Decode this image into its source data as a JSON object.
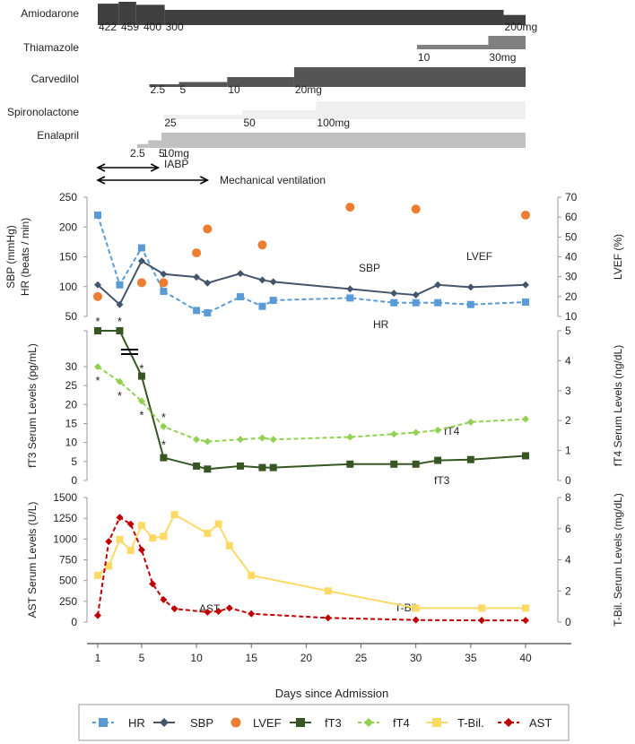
{
  "chart_data": {
    "type": "line",
    "xlabel": "Days since Admission",
    "x_ticks": [
      1,
      5,
      10,
      15,
      20,
      25,
      30,
      35,
      40
    ],
    "medications": [
      {
        "name": "Amiodarone",
        "color": "#404040",
        "doses": [
          {
            "label": "422",
            "dose": 422,
            "start": 1,
            "end": 2.9
          },
          {
            "label": "459",
            "dose": 459,
            "start": 2.9,
            "end": 4.5
          },
          {
            "label": "400",
            "dose": 400,
            "start": 4.5,
            "end": 7.1
          },
          {
            "label": "300",
            "dose": 300,
            "start": 7.1,
            "end": 38
          },
          {
            "label": "200mg",
            "dose": 200,
            "start": 38,
            "end": 40
          }
        ]
      },
      {
        "name": "Thiamazole",
        "color": "#808080",
        "doses": [
          {
            "label": "10",
            "dose": 10,
            "start": 30.1,
            "end": 36.6
          },
          {
            "label": "30mg",
            "dose": 30,
            "start": 36.6,
            "end": 40
          }
        ]
      },
      {
        "name": "Carvedilol",
        "color": "#555555",
        "doses": [
          {
            "label": "2.5",
            "dose": 2.5,
            "start": 5.7,
            "end": 8.4
          },
          {
            "label": "5",
            "dose": 5,
            "start": 8.4,
            "end": 12.8
          },
          {
            "label": "10",
            "dose": 10,
            "start": 12.8,
            "end": 18.9
          },
          {
            "label": "20mg",
            "dose": 20,
            "start": 18.9,
            "end": 40
          }
        ]
      },
      {
        "name": "Spironolactone",
        "color": "#efefef",
        "doses": [
          {
            "label": "25",
            "dose": 25,
            "start": 7,
            "end": 14.2
          },
          {
            "label": "50",
            "dose": 50,
            "start": 14.2,
            "end": 20.9
          },
          {
            "label": "100mg",
            "dose": 100,
            "start": 20.9,
            "end": 40
          }
        ]
      },
      {
        "name": "Enalapril",
        "color": "#c0c0c0",
        "doses": [
          {
            "label": "2.5",
            "dose": 2.5,
            "start": 4.6,
            "end": 5.6
          },
          {
            "label": "5",
            "dose": 5,
            "start": 5.6,
            "end": 6.8
          },
          {
            "label": "10mg",
            "dose": 10,
            "start": 6.8,
            "end": 40
          }
        ]
      }
    ],
    "interventions": [
      {
        "name": "IABP",
        "start": 1,
        "end": 6.5
      },
      {
        "name": "Mechanical  ventilation",
        "start": 1,
        "end": 11
      }
    ],
    "panels": [
      {
        "left_axis": {
          "label_line1": "SBP (mmHg)",
          "label_line2": "HR (beats / min)",
          "ylim": [
            50,
            250
          ],
          "ticks": [
            50,
            100,
            150,
            200,
            250
          ]
        },
        "right_axis": {
          "label": "LVEF (%)",
          "ylim": [
            10,
            70
          ],
          "ticks": [
            10,
            20,
            30,
            40,
            50,
            60,
            70
          ]
        },
        "annotations": [
          "LVEF",
          "SBP",
          "HR"
        ],
        "series": [
          {
            "key": "HR",
            "axis": "left",
            "color": "#5b9bd5",
            "style": "dashed",
            "marker": "square",
            "points": [
              [
                1,
                220
              ],
              [
                3,
                103
              ],
              [
                5,
                165
              ],
              [
                7,
                92
              ],
              [
                10,
                60
              ],
              [
                11,
                56
              ],
              [
                14,
                83
              ],
              [
                16,
                67
              ],
              [
                17,
                77
              ],
              [
                24,
                81
              ],
              [
                28,
                73
              ],
              [
                30,
                73
              ],
              [
                32,
                73
              ],
              [
                35,
                70
              ],
              [
                40,
                74
              ]
            ]
          },
          {
            "key": "SBP",
            "axis": "left",
            "color": "#44546a",
            "style": "solid",
            "marker": "diamond",
            "points": [
              [
                1,
                103
              ],
              [
                3,
                70
              ],
              [
                5,
                143
              ],
              [
                7,
                121
              ],
              [
                10,
                116
              ],
              [
                11,
                106
              ],
              [
                14,
                122
              ],
              [
                16,
                111
              ],
              [
                17,
                108
              ],
              [
                24,
                96
              ],
              [
                28,
                89
              ],
              [
                30,
                86
              ],
              [
                32,
                103
              ],
              [
                35,
                99
              ],
              [
                40,
                103
              ]
            ]
          },
          {
            "key": "LVEF",
            "axis": "right",
            "color": "#ed7d31",
            "style": "none",
            "marker": "circle",
            "points": [
              [
                1,
                20
              ],
              [
                5,
                27
              ],
              [
                7,
                27
              ],
              [
                10,
                42
              ],
              [
                11,
                54
              ],
              [
                16,
                46
              ],
              [
                24,
                65
              ],
              [
                30,
                64
              ],
              [
                40,
                61
              ]
            ]
          }
        ]
      },
      {
        "left_axis": {
          "label": "fT3 Serum Levels (pg/mL)",
          "ylim": [
            0,
            30
          ],
          "ticks": [
            0,
            5,
            10,
            15,
            20,
            25,
            30
          ],
          "axis_break": true
        },
        "right_axis": {
          "label": "fT4 Serum Levels (ng/dL)",
          "ylim": [
            0,
            5
          ],
          "ticks": [
            0,
            1,
            2,
            3,
            4,
            5
          ]
        },
        "annotations": [
          "fT4",
          "fT3"
        ],
        "series": [
          {
            "key": "fT3",
            "axis": "left",
            "color": "#375623",
            "style": "solid",
            "marker": "square",
            "offscale_high_days": [
              1,
              3
            ],
            "points": [
              [
                1,
                null
              ],
              [
                3,
                null
              ],
              [
                5,
                27.5
              ],
              [
                7,
                6
              ],
              [
                10,
                3.8
              ],
              [
                11,
                3
              ],
              [
                14,
                3.8
              ],
              [
                16,
                3.4
              ],
              [
                17,
                3.4
              ],
              [
                24,
                4.3
              ],
              [
                28,
                4.3
              ],
              [
                30,
                4.3
              ],
              [
                32,
                5.3
              ],
              [
                35,
                5.5
              ],
              [
                40,
                6.5
              ]
            ],
            "significant_days": [
              1,
              3,
              5,
              7
            ]
          },
          {
            "key": "fT4",
            "axis": "right",
            "color": "#92d050",
            "style": "dashed",
            "marker": "diamond",
            "points": [
              [
                1,
                3.8
              ],
              [
                3,
                3.3
              ],
              [
                5,
                2.65
              ],
              [
                7,
                1.8
              ],
              [
                10,
                1.37
              ],
              [
                11,
                1.3
              ],
              [
                14,
                1.37
              ],
              [
                16,
                1.42
              ],
              [
                17,
                1.37
              ],
              [
                24,
                1.45
              ],
              [
                28,
                1.55
              ],
              [
                30,
                1.6
              ],
              [
                32,
                1.68
              ],
              [
                35,
                1.95
              ],
              [
                40,
                2.05
              ]
            ],
            "significant_days": [
              1,
              3,
              5,
              7
            ]
          }
        ],
        "significance_mark": "*"
      },
      {
        "left_axis": {
          "label": "AST Serum Levels (U/L)",
          "ylim": [
            0,
            1500
          ],
          "ticks": [
            0,
            250,
            500,
            750,
            1000,
            1250,
            1500
          ]
        },
        "right_axis": {
          "label": "T-Bil. Serum Levels (mg/dL)",
          "ylim": [
            0,
            8
          ],
          "ticks": [
            0,
            2,
            4,
            6,
            8
          ]
        },
        "annotations": [
          "AST",
          "T-Bil."
        ],
        "series": [
          {
            "key": "T-Bil.",
            "axis": "right",
            "color": "#ffd966",
            "style": "solid",
            "marker": "square",
            "points": [
              [
                1,
                3.0
              ],
              [
                2,
                3.6
              ],
              [
                3,
                5.3
              ],
              [
                4,
                4.6
              ],
              [
                5,
                6.2
              ],
              [
                6,
                5.4
              ],
              [
                7,
                5.5
              ],
              [
                8,
                6.9
              ],
              [
                11,
                5.7
              ],
              [
                12,
                6.3
              ],
              [
                13,
                4.9
              ],
              [
                15,
                3.0
              ],
              [
                22,
                2.0
              ],
              [
                30,
                0.9
              ],
              [
                36,
                0.9
              ],
              [
                40,
                0.9
              ]
            ]
          },
          {
            "key": "AST",
            "axis": "left",
            "color": "#c00000",
            "style": "dashed",
            "marker": "diamond",
            "points": [
              [
                1,
                80
              ],
              [
                2,
                970
              ],
              [
                3,
                1260
              ],
              [
                4,
                1180
              ],
              [
                5,
                870
              ],
              [
                6,
                460
              ],
              [
                7,
                270
              ],
              [
                8,
                160
              ],
              [
                11,
                120
              ],
              [
                12,
                130
              ],
              [
                13,
                170
              ],
              [
                15,
                100
              ],
              [
                22,
                50
              ],
              [
                30,
                25
              ],
              [
                36,
                20
              ],
              [
                40,
                20
              ]
            ]
          }
        ]
      }
    ],
    "legend": {
      "placement": "bottom",
      "items": [
        {
          "label": "HR",
          "color": "#5b9bd5",
          "marker": "square",
          "style": "dashed"
        },
        {
          "label": "SBP",
          "color": "#44546a",
          "marker": "diamond",
          "style": "solid"
        },
        {
          "label": "LVEF",
          "color": "#ed7d31",
          "marker": "circle",
          "style": "none"
        },
        {
          "label": "fT3",
          "color": "#375623",
          "marker": "square",
          "style": "solid"
        },
        {
          "label": "fT4",
          "color": "#92d050",
          "marker": "diamond",
          "style": "dashed"
        },
        {
          "label": "T-Bil.",
          "color": "#ffd966",
          "marker": "square",
          "style": "solid"
        },
        {
          "label": "AST",
          "color": "#c00000",
          "marker": "diamond",
          "style": "dashed"
        }
      ]
    }
  }
}
